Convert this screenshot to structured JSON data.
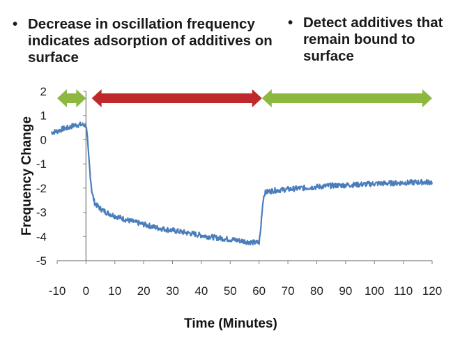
{
  "annotations": {
    "left": {
      "bullet": "•",
      "text": "Decrease in oscillation frequency indicates adsorption of additives on surface"
    },
    "right": {
      "bullet": "•",
      "text": "Detect additives that remain bound to surface"
    }
  },
  "chart_data": {
    "type": "line",
    "title": "",
    "xlabel": "Time (Minutes)",
    "ylabel": "Frequency Change",
    "xlim": [
      -10,
      120
    ],
    "ylim": [
      -5,
      2
    ],
    "xticks": [
      -10,
      0,
      10,
      20,
      30,
      40,
      50,
      60,
      70,
      80,
      90,
      100,
      110,
      120
    ],
    "yticks": [
      2,
      1,
      0,
      -1,
      -2,
      -3,
      -4,
      -5
    ],
    "grid": false,
    "series": [
      {
        "color": "#4a7ebb",
        "x": [
          -12,
          -10,
          -8,
          -6,
          -4,
          -2,
          0,
          0.5,
          1,
          1.5,
          2,
          2.5,
          3,
          4,
          5,
          7,
          10,
          15,
          20,
          25,
          30,
          35,
          40,
          45,
          50,
          55,
          58,
          60,
          60.5,
          61,
          61.5,
          62,
          63,
          65,
          70,
          75,
          80,
          85,
          90,
          95,
          100,
          105,
          110,
          115,
          120
        ],
        "y": [
          0.3,
          0.35,
          0.45,
          0.5,
          0.6,
          0.62,
          0.6,
          0.0,
          -0.8,
          -1.5,
          -2.1,
          -2.4,
          -2.6,
          -2.75,
          -2.85,
          -3.0,
          -3.15,
          -3.35,
          -3.5,
          -3.65,
          -3.75,
          -3.85,
          -3.95,
          -4.05,
          -4.12,
          -4.2,
          -4.25,
          -4.25,
          -3.8,
          -3.0,
          -2.4,
          -2.2,
          -2.15,
          -2.1,
          -2.05,
          -2.0,
          -1.95,
          -1.9,
          -1.88,
          -1.85,
          -1.82,
          -1.8,
          -1.78,
          -1.76,
          -1.75
        ]
      }
    ],
    "ranges": [
      {
        "color": "#8db83f",
        "start": -10,
        "end": 0
      },
      {
        "color": "#c0292b",
        "start": 2,
        "end": 61
      },
      {
        "color": "#8db83f",
        "start": 61,
        "end": 120
      }
    ]
  }
}
